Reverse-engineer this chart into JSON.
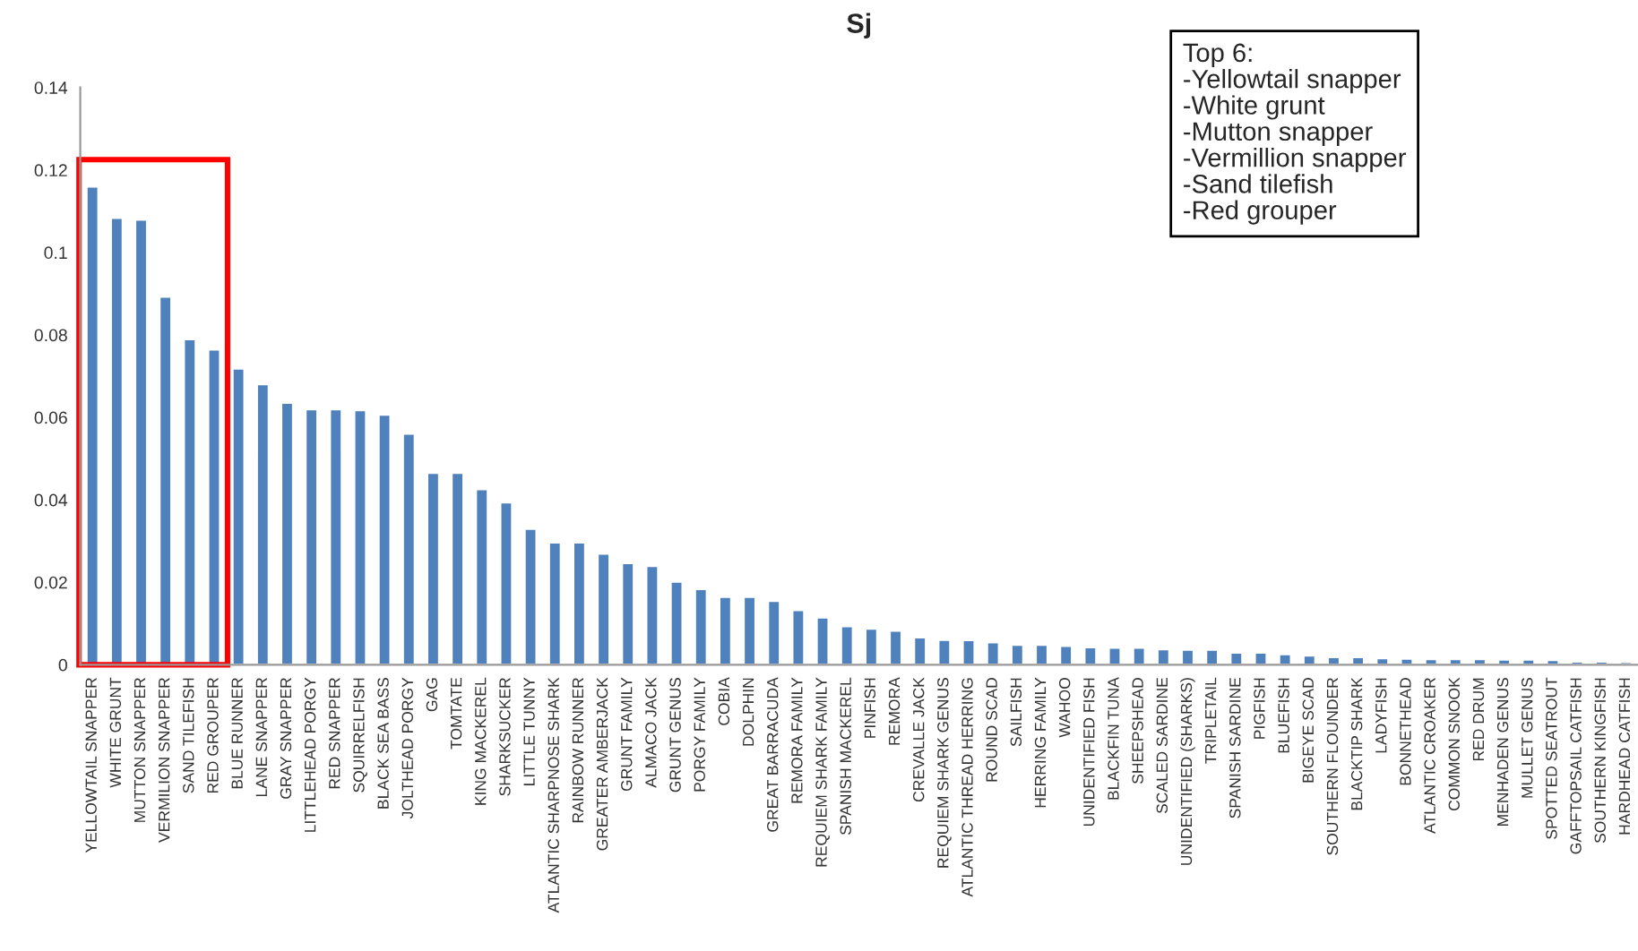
{
  "chart_data": {
    "type": "bar",
    "title": "Sj",
    "categories": [
      "YELLOWTAIL SNAPPER",
      "WHITE GRUNT",
      "MUTTON SNAPPER",
      "VERMILION SNAPPER",
      "SAND TILEFISH",
      "RED GROUPER",
      "BLUE RUNNER",
      "LANE SNAPPER",
      "GRAY SNAPPER",
      "LITTLEHEAD PORGY",
      "RED SNAPPER",
      "SQUIRRELFISH",
      "BLACK SEA BASS",
      "JOLTHEAD PORGY",
      "GAG",
      "TOMTATE",
      "KING MACKEREL",
      "SHARKSUCKER",
      "LITTLE TUNNY",
      "ATLANTIC SHARPNOSE SHARK",
      "RAINBOW RUNNER",
      "GREATER AMBERJACK",
      "GRUNT FAMILY",
      "ALMACO JACK",
      "GRUNT GENUS",
      "PORGY FAMILY",
      "COBIA",
      "DOLPHIN",
      "GREAT BARRACUDA",
      "REMORA FAMILY",
      "REQUIEM SHARK FAMILY",
      "SPANISH MACKEREL",
      "PINFISH",
      "REMORA",
      "CREVALLE JACK",
      "REQUIEM SHARK GENUS",
      "ATLANTIC THREAD HERRING",
      "ROUND SCAD",
      "SAILFISH",
      "HERRING FAMILY",
      "WAHOO",
      "UNIDENTIFIED FISH",
      "BLACKFIN TUNA",
      "SHEEPSHEAD",
      "SCALED SARDINE",
      "UNIDENTIFIED (SHARKS)",
      "TRIPLETAIL",
      "SPANISH SARDINE",
      "PIGFISH",
      "BLUEFISH",
      "BIGEYE SCAD",
      "SOUTHERN FLOUNDER",
      "BLACKTIP SHARK",
      "LADYFISH",
      "BONNETHEAD",
      "ATLANTIC CROAKER",
      "COMMON SNOOK",
      "RED DRUM",
      "MENHADEN GENUS",
      "MULLET GENUS",
      "SPOTTED SEATROUT",
      "GAFFTOPSAIL CATFISH",
      "SOUTHERN KINGFISH",
      "HARDHEAD CATFISH"
    ],
    "values": [
      0.116,
      0.1084,
      0.108,
      0.0893,
      0.079,
      0.0765,
      0.0719,
      0.0681,
      0.0636,
      0.062,
      0.062,
      0.0618,
      0.0607,
      0.0561,
      0.0466,
      0.0466,
      0.0426,
      0.0394,
      0.033,
      0.0297,
      0.0297,
      0.027,
      0.0247,
      0.024,
      0.0202,
      0.0184,
      0.0165,
      0.0165,
      0.0155,
      0.0133,
      0.0115,
      0.0094,
      0.0088,
      0.0083,
      0.0067,
      0.0061,
      0.006,
      0.0055,
      0.0049,
      0.0049,
      0.0046,
      0.0043,
      0.0042,
      0.0042,
      0.0038,
      0.0037,
      0.0037,
      0.003,
      0.003,
      0.0026,
      0.0023,
      0.0019,
      0.0019,
      0.0016,
      0.0015,
      0.0014,
      0.0014,
      0.0014,
      0.0013,
      0.0013,
      0.0012,
      0.0008,
      0.0008,
      0.0007
    ],
    "color": "#4f81bd",
    "ylim": [
      0,
      0.14
    ],
    "yticks": [
      0,
      0.02,
      0.04,
      0.06,
      0.08,
      0.1,
      0.12,
      0.14
    ],
    "annotations": [
      "Top 6:\n-Yellowtail snapper\n-White grunt\n-Mutton snapper\n-Vermillion snapper\n-Sand tilefish\n-Red grouper"
    ]
  }
}
